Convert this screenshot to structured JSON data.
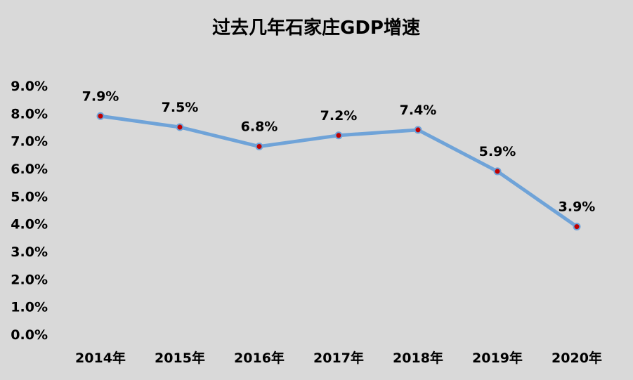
{
  "chart_data": {
    "type": "line",
    "title": "过去几年石家庄GDP增速",
    "categories": [
      "2014年",
      "2015年",
      "2016年",
      "2017年",
      "2018年",
      "2019年",
      "2020年"
    ],
    "series": [
      {
        "values": [
          7.9,
          7.5,
          6.8,
          7.2,
          7.4,
          5.9,
          3.9
        ],
        "data_labels": [
          "7.9%",
          "7.5%",
          "6.8%",
          "7.2%",
          "7.4%",
          "5.9%",
          "3.9%"
        ]
      }
    ],
    "ylim": [
      0,
      9
    ],
    "yticks": [
      0,
      1,
      2,
      3,
      4,
      5,
      6,
      7,
      8,
      9
    ],
    "ytick_labels": [
      "0.0%",
      "1.0%",
      "2.0%",
      "3.0%",
      "4.0%",
      "5.0%",
      "6.0%",
      "7.0%",
      "8.0%",
      "9.0%"
    ],
    "xlabel": "",
    "ylabel": "",
    "grid": false,
    "legend": "none",
    "colors": {
      "background": "#d9d9d9",
      "line": "#6fa3d8",
      "marker_fill": "#c00000",
      "marker_stroke": "#6fa3d8",
      "text": "#000000"
    }
  }
}
